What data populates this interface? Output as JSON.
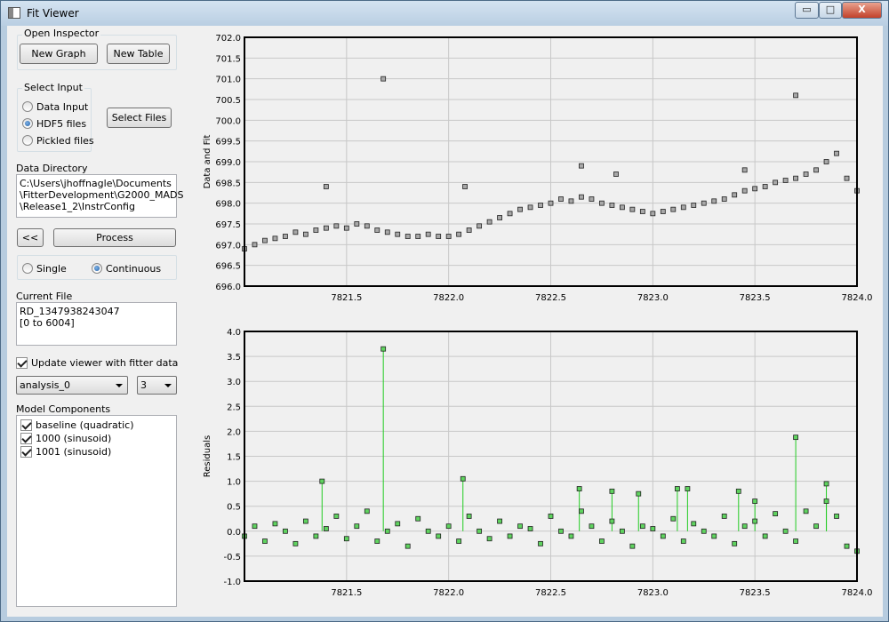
{
  "window": {
    "title": "Fit Viewer",
    "controls": {
      "minimize": "▭",
      "maximize": "□",
      "close": "X"
    }
  },
  "inspector": {
    "group_title": "Open Inspector",
    "new_graph": "New Graph",
    "new_table": "New Table"
  },
  "input": {
    "group_title": "Select Input",
    "options": [
      "Data Input",
      "HDF5 files",
      "Pickled files"
    ],
    "selected_index": 1,
    "select_files": "Select Files"
  },
  "directory": {
    "label": "Data Directory",
    "lines": [
      "C:\\Users\\jhoffnagle\\Documents",
      "\\FitterDevelopment\\G2000_MADS",
      "\\Release1_2\\InstrConfig"
    ]
  },
  "process": {
    "back": "<<",
    "process": "Process",
    "mode_single": "Single",
    "mode_continuous": "Continuous",
    "mode_selected": "continuous"
  },
  "current_file": {
    "label": "Current File",
    "lines": [
      "RD_1347938243047",
      " [0 to 6004]"
    ]
  },
  "update_viewer": {
    "label": "Update viewer with fitter data",
    "checked": true
  },
  "analysis": {
    "selected": "analysis_0",
    "index_selected": "3"
  },
  "model_components": {
    "label": "Model Components",
    "items": [
      {
        "label": "baseline (quadratic)",
        "checked": true
      },
      {
        "label": "1000 (sinusoid)",
        "checked": true
      },
      {
        "label": "1001 (sinusoid)",
        "checked": true
      }
    ]
  },
  "chart_data": [
    {
      "type": "scatter",
      "ylabel": "Data and Fit",
      "xlim": [
        7821.0,
        7824.0
      ],
      "ylim": [
        696.0,
        702.0
      ],
      "x_ticks": [
        "7821.5",
        "7822.0",
        "7822.5",
        "7823.0",
        "7823.5",
        "7824.0"
      ],
      "y_ticks": [
        "696.0",
        "696.5",
        "697.0",
        "697.5",
        "698.0",
        "698.5",
        "699.0",
        "699.5",
        "700.0",
        "700.5",
        "701.0",
        "701.5",
        "702.0"
      ],
      "grid": true,
      "series": [
        {
          "marker_color": "#a8a8a8",
          "x": [
            7821.0,
            7821.05,
            7821.1,
            7821.15,
            7821.2,
            7821.25,
            7821.3,
            7821.35,
            7821.4,
            7821.45,
            7821.5,
            7821.55,
            7821.6,
            7821.65,
            7821.7,
            7821.75,
            7821.8,
            7821.85,
            7821.9,
            7821.95,
            7822.0,
            7822.05,
            7822.1,
            7822.15,
            7822.2,
            7822.25,
            7822.3,
            7822.35,
            7822.4,
            7822.45,
            7822.5,
            7822.55,
            7822.6,
            7822.65,
            7822.7,
            7822.75,
            7822.8,
            7822.85,
            7822.9,
            7822.95,
            7823.0,
            7823.05,
            7823.1,
            7823.15,
            7823.2,
            7823.25,
            7823.3,
            7823.35,
            7823.4,
            7823.45,
            7823.5,
            7823.55,
            7823.6,
            7823.65,
            7823.7,
            7823.75,
            7823.8,
            7823.85,
            7823.9,
            7823.95,
            7824.0,
            7821.68,
            7821.4,
            7822.08,
            7822.65,
            7823.7,
            7822.82,
            7823.45
          ],
          "y": [
            696.9,
            697.0,
            697.1,
            697.15,
            697.2,
            697.3,
            697.25,
            697.35,
            697.4,
            697.45,
            697.4,
            697.5,
            697.45,
            697.35,
            697.3,
            697.25,
            697.2,
            697.2,
            697.25,
            697.2,
            697.2,
            697.25,
            697.35,
            697.45,
            697.55,
            697.65,
            697.75,
            697.85,
            697.9,
            697.95,
            698.0,
            698.1,
            698.05,
            698.15,
            698.1,
            698.0,
            697.95,
            697.9,
            697.85,
            697.8,
            697.75,
            697.8,
            697.85,
            697.9,
            697.95,
            698.0,
            698.05,
            698.1,
            698.2,
            698.3,
            698.35,
            698.4,
            698.5,
            698.55,
            698.6,
            698.7,
            698.8,
            699.0,
            699.2,
            698.6,
            698.3,
            701.0,
            698.4,
            698.4,
            698.9,
            700.6,
            698.7,
            698.8
          ]
        }
      ]
    },
    {
      "type": "scatter",
      "ylabel": "Residuals",
      "xlim": [
        7821.0,
        7824.0
      ],
      "ylim": [
        -1.0,
        4.0
      ],
      "x_ticks": [
        "7821.5",
        "7822.0",
        "7822.5",
        "7823.0",
        "7823.5",
        "7824.0"
      ],
      "y_ticks": [
        "-1.0",
        "-0.5",
        "0.0",
        "0.5",
        "1.0",
        "1.5",
        "2.0",
        "2.5",
        "3.0",
        "3.5",
        "4.0"
      ],
      "grid": true,
      "series": [
        {
          "marker_color": "#5fd35f",
          "line_color": "#22cc22",
          "x": [
            7821.0,
            7821.05,
            7821.1,
            7821.15,
            7821.2,
            7821.25,
            7821.3,
            7821.35,
            7821.4,
            7821.45,
            7821.5,
            7821.55,
            7821.6,
            7821.65,
            7821.7,
            7821.75,
            7821.8,
            7821.85,
            7821.9,
            7821.95,
            7822.0,
            7822.05,
            7822.1,
            7822.15,
            7822.2,
            7822.25,
            7822.3,
            7822.35,
            7822.4,
            7822.45,
            7822.5,
            7822.55,
            7822.6,
            7822.65,
            7822.7,
            7822.75,
            7822.8,
            7822.85,
            7822.9,
            7822.95,
            7823.0,
            7823.05,
            7823.1,
            7823.15,
            7823.2,
            7823.25,
            7823.3,
            7823.35,
            7823.4,
            7823.45,
            7823.5,
            7823.55,
            7823.6,
            7823.65,
            7823.7,
            7823.75,
            7823.8,
            7823.85,
            7823.9,
            7823.95,
            7824.0,
            7821.38,
            7821.68,
            7822.07,
            7822.64,
            7822.8,
            7822.93,
            7823.12,
            7823.17,
            7823.42,
            7823.5,
            7823.7,
            7823.85
          ],
          "y": [
            -0.1,
            0.1,
            -0.2,
            0.15,
            0.0,
            -0.25,
            0.2,
            -0.1,
            0.05,
            0.3,
            -0.15,
            0.1,
            0.4,
            -0.2,
            0.0,
            0.15,
            -0.3,
            0.25,
            0.0,
            -0.1,
            0.1,
            -0.2,
            0.3,
            0.0,
            -0.15,
            0.2,
            -0.1,
            0.1,
            0.05,
            -0.25,
            0.3,
            0.0,
            -0.1,
            0.4,
            0.1,
            -0.2,
            0.2,
            0.0,
            -0.3,
            0.1,
            0.05,
            -0.1,
            0.25,
            -0.2,
            0.15,
            0.0,
            -0.1,
            0.3,
            -0.25,
            0.1,
            0.2,
            -0.1,
            0.35,
            0.0,
            -0.2,
            0.4,
            0.1,
            0.6,
            0.3,
            -0.3,
            -0.4,
            1.0,
            3.65,
            1.05,
            0.85,
            0.8,
            0.75,
            0.85,
            0.85,
            0.8,
            0.6,
            1.88,
            0.95
          ]
        }
      ]
    }
  ]
}
